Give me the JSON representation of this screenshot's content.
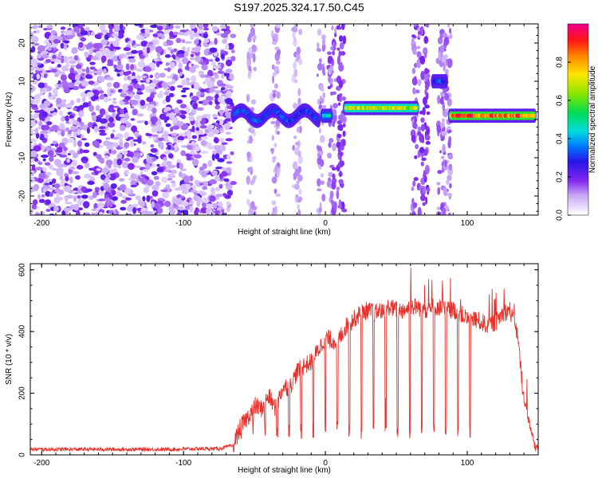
{
  "title": "S197.2025.324.17.50.C45",
  "chart_data": [
    {
      "type": "heatmap",
      "name": "spectrogram",
      "title": "S197.2025.324.17.50.C45",
      "xlabel": "Height of straight line (km)",
      "ylabel": "Frequency (Hz)",
      "xlim": [
        -208,
        150
      ],
      "ylim": [
        -25,
        25
      ],
      "xticks": [
        -200,
        -100,
        0,
        100
      ],
      "yticks": [
        -20,
        -10,
        0,
        10,
        20
      ],
      "colorbar": {
        "label": "Normalized spectral amplitude",
        "range": [
          0,
          1
        ],
        "ticks": [
          0.0,
          0.2,
          0.4,
          0.6,
          0.8
        ],
        "tick_labels": [
          "0.0",
          "0.2",
          "0.4",
          "0.6",
          "0.8"
        ]
      },
      "features": [
        {
          "x_range": [
            -208,
            -65
          ],
          "freq_range": [
            -25,
            25
          ],
          "kind": "broadband noise",
          "amplitude": 0.15
        },
        {
          "x_range": [
            -65,
            -5
          ],
          "center_freq": 1.0,
          "kind": "wavy narrowband signal",
          "amplitude": 0.35
        },
        {
          "x_range": [
            -2,
            4
          ],
          "center_freq": 1.0,
          "kind": "narrowband signal",
          "amplitude": 0.5
        },
        {
          "x_range": [
            14,
            65
          ],
          "center_freq": 3.0,
          "kind": "narrowband signal",
          "amplitude": 0.75
        },
        {
          "x_range": [
            76,
            85
          ],
          "center_freq": 10.0,
          "kind": "narrowband signal",
          "amplitude": 0.35
        },
        {
          "x_range": [
            88,
            148
          ],
          "center_freq": 1.0,
          "kind": "narrowband signal",
          "amplitude": 0.95
        }
      ]
    },
    {
      "type": "line",
      "name": "snr",
      "xlabel": "Height of straight line (km)",
      "ylabel": "SNR (10 * v/v)",
      "xlim": [
        -208,
        150
      ],
      "ylim": [
        0,
        620
      ],
      "xticks": [
        -200,
        -100,
        0,
        100
      ],
      "yticks": [
        0,
        200,
        400,
        600
      ],
      "series": [
        {
          "name": "SNR",
          "color": "#e8302a",
          "x": [
            -208,
            -190,
            -170,
            -150,
            -130,
            -110,
            -90,
            -75,
            -65,
            -60,
            -55,
            -50,
            -45,
            -40,
            -35,
            -30,
            -25,
            -20,
            -15,
            -10,
            -5,
            0,
            5,
            10,
            15,
            20,
            25,
            30,
            35,
            40,
            45,
            50,
            55,
            60,
            65,
            70,
            75,
            80,
            85,
            90,
            95,
            100,
            105,
            110,
            115,
            120,
            125,
            130,
            135,
            140,
            145,
            148,
            150
          ],
          "y": [
            18,
            18,
            18,
            18,
            18,
            18,
            20,
            20,
            30,
            90,
            120,
            160,
            150,
            190,
            150,
            220,
            220,
            270,
            290,
            300,
            340,
            380,
            370,
            380,
            420,
            440,
            460,
            470,
            460,
            470,
            480,
            470,
            470,
            480,
            480,
            470,
            480,
            480,
            470,
            470,
            460,
            440,
            440,
            430,
            420,
            430,
            460,
            470,
            400,
            180,
            80,
            20,
            30
          ]
        }
      ]
    }
  ]
}
